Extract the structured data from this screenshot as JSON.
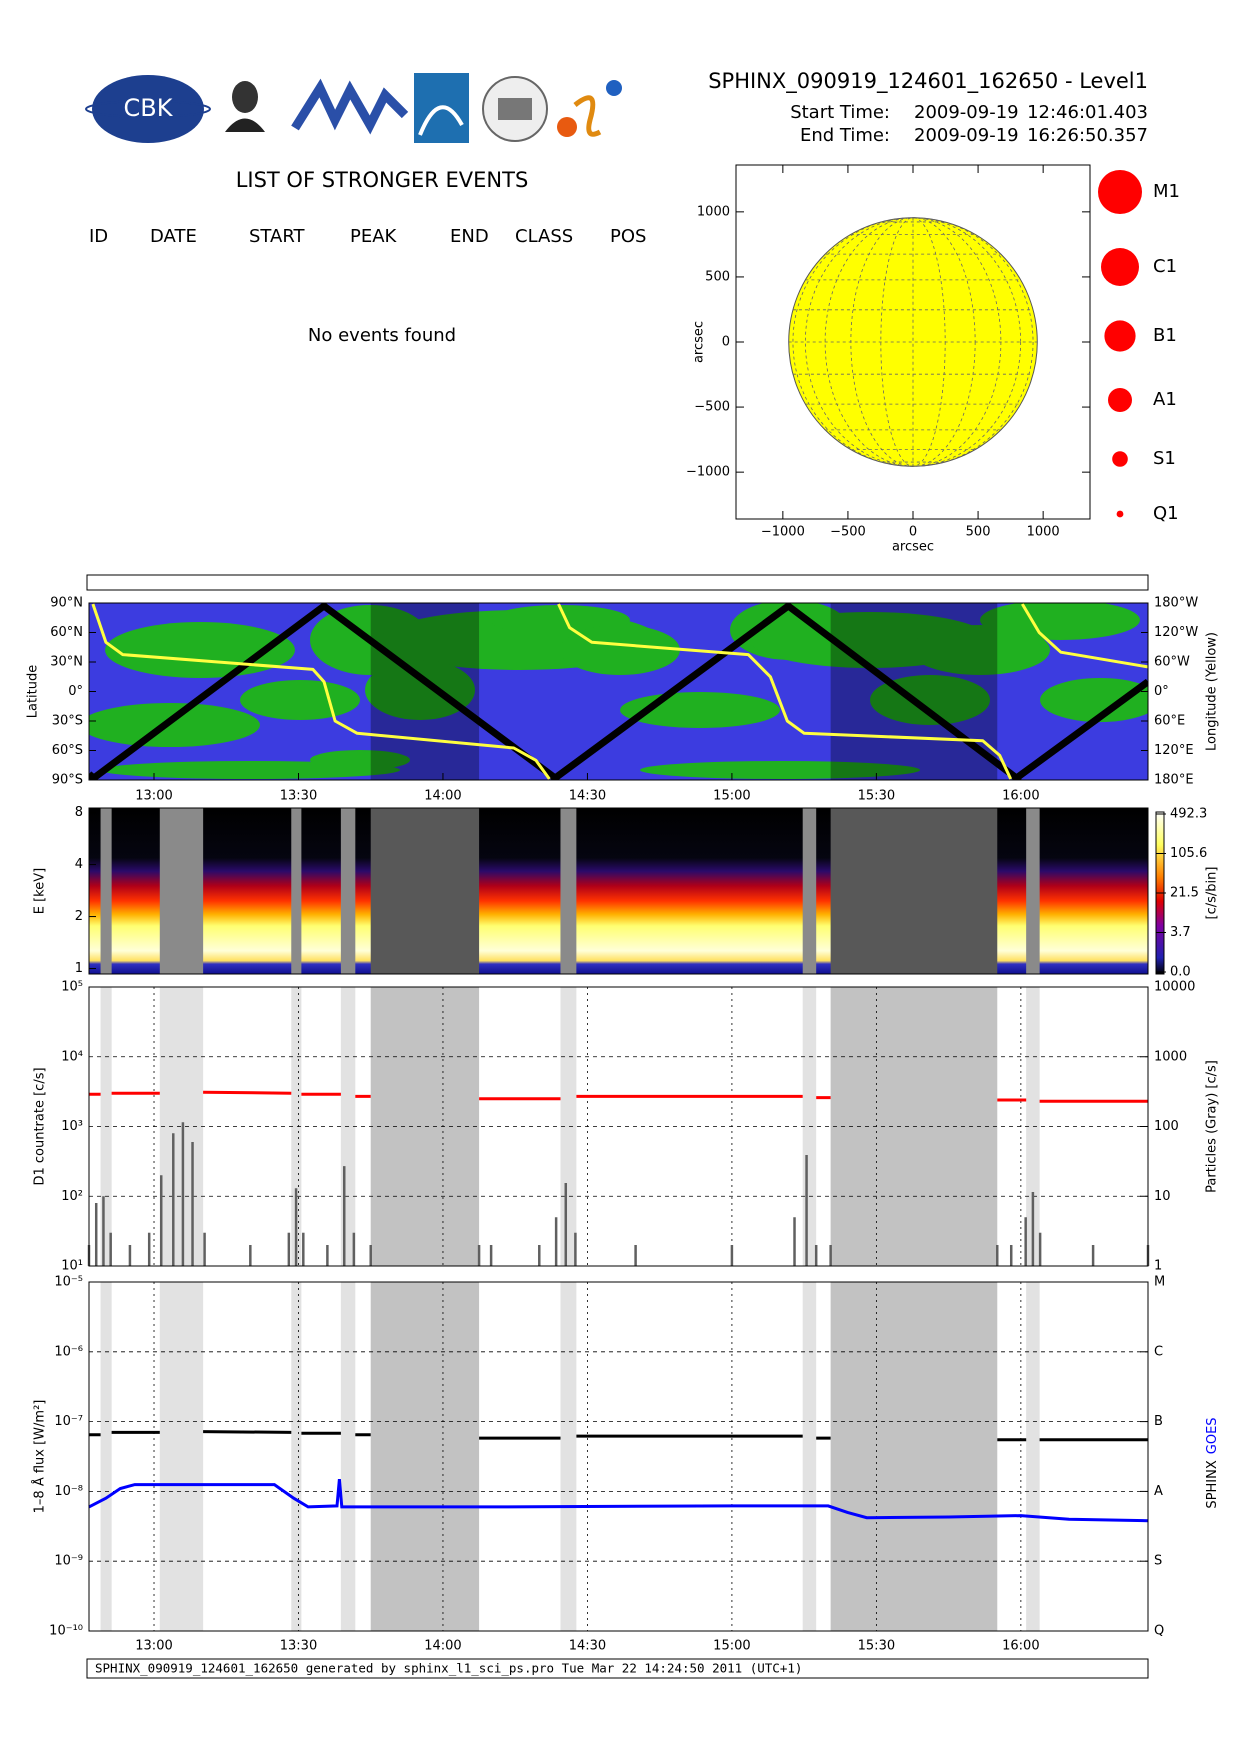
{
  "header": {
    "logo_text": "CBK",
    "title": "SPHINX_090919_124601_162650 - Level1",
    "start_label": "Start Time:",
    "start_date": "2009-09-19",
    "start_time": "12:46:01.403",
    "end_label": "End Time:",
    "end_date": "2009-09-19",
    "end_time": "16:26:50.357"
  },
  "events": {
    "title": "LIST OF STRONGER EVENTS",
    "columns": [
      "ID",
      "DATE",
      "START",
      "PEAK",
      "END",
      "CLASS",
      "POS"
    ],
    "message": "No events found"
  },
  "footer": "SPHINX_090919_124601_162650 generated by sphinx_l1_sci_ps.pro Tue Mar 22 14:24:50 2011 (UTC+1)",
  "chart_data": [
    {
      "type": "disk",
      "xlabel": "arcsec",
      "ylabel": "arcsec",
      "xlim": [
        -1360,
        1360
      ],
      "ylim": [
        -1360,
        1360
      ],
      "xticks": [
        {
          "value": -1000,
          "label": "−1000"
        },
        {
          "value": -500,
          "label": "−500"
        },
        0,
        500,
        1000
      ],
      "yticks": [
        {
          "value": -1000,
          "label": "−1000"
        },
        {
          "value": -500,
          "label": "−500"
        },
        0,
        500,
        1000
      ],
      "disk_radius": 955,
      "disk_color": "#ffff00",
      "classes": [
        "M1",
        "C1",
        "B1",
        "A1",
        "S1",
        "Q1"
      ],
      "class_color": "#ff0000"
    },
    {
      "type": "orbit-map",
      "ylabel": "Latitude",
      "y2label": "Longitude (Yellow)",
      "xlim": [
        766.5,
        986.4
      ],
      "xticks": [
        {
          "value": 780,
          "label": "13:00"
        },
        {
          "value": 810,
          "label": "13:30"
        },
        {
          "value": 840,
          "label": "14:00"
        },
        {
          "value": 870,
          "label": "14:30"
        },
        {
          "value": 900,
          "label": "15:00"
        },
        {
          "value": 930,
          "label": "15:30"
        },
        {
          "value": 960,
          "label": "16:00"
        }
      ],
      "ylim": [
        -90,
        90
      ],
      "yticks": [
        {
          "value": -90,
          "label": "90°S"
        },
        {
          "value": -60,
          "label": "60°S"
        },
        {
          "value": -30,
          "label": "30°S"
        },
        {
          "value": 0,
          "label": "0°"
        },
        {
          "value": 30,
          "label": "30°N"
        },
        {
          "value": 60,
          "label": "60°N"
        },
        {
          "value": 90,
          "label": "90°N"
        }
      ],
      "y2lim": [
        -180,
        180
      ],
      "y2ticks": [
        {
          "value": -180,
          "label": "180°E"
        },
        {
          "value": -120,
          "label": "120°E"
        },
        {
          "value": -60,
          "label": "60°E"
        },
        {
          "value": 0,
          "label": "0°"
        },
        {
          "value": 60,
          "label": "60°W"
        },
        {
          "value": 120,
          "label": "120°W"
        },
        {
          "value": 180,
          "label": "180°W"
        }
      ],
      "series": [
        {
          "color": "#000000",
          "x": [
            766.5,
            767.5,
            815.3,
            863.3,
            911.7,
            959.1,
            986.4
          ],
          "values": [
            -84,
            -88,
            87,
            -88,
            87,
            -88,
            10
          ]
        },
        {
          "color": "#ffff40",
          "axis": "y2",
          "x": [
            767.3,
            770,
            773.5,
            813,
            815.3,
            817.6,
            822.2,
            854.7,
            859.3,
            862.1,
            863,
            864,
            866.3,
            870.9,
            903.4,
            908,
            911.5,
            915,
            952.1,
            955.6,
            957.9,
            959,
            960.3,
            963.8,
            968.3,
            986.4
          ],
          "values": [
            178,
            100,
            75,
            45,
            20,
            -60,
            -85,
            -115,
            -140,
            -178,
            null,
            178,
            130,
            100,
            75,
            30,
            -60,
            -85,
            -100,
            -130,
            -178,
            null,
            178,
            120,
            80,
            50
          ]
        }
      ]
    },
    {
      "type": "spectrogram",
      "ylabel": "E [keV]",
      "xlim": [
        766.5,
        986.4
      ],
      "ylim": [
        0.93,
        8.5
      ],
      "log_y": true,
      "yticks": [
        1,
        2,
        4,
        8
      ],
      "colorbar_label": "[c/s/bin]",
      "colorbar_ticks": [
        {
          "value": 0,
          "label": "0.0"
        },
        3.7,
        21.5,
        105.6,
        492.3
      ]
    },
    {
      "type": "line",
      "ylabel": "D1 countrate [c/s]",
      "y2label": "Particles (Gray) [c/s]",
      "xlim": [
        766.5,
        986.4
      ],
      "ylim": [
        10,
        100000
      ],
      "log_y": true,
      "yticks": [
        {
          "value": 10,
          "label": "10¹"
        },
        {
          "value": 100,
          "label": "10²"
        },
        {
          "value": 1000,
          "label": "10³"
        },
        {
          "value": 10000,
          "label": "10⁴"
        },
        {
          "value": 100000,
          "label": "10⁵"
        }
      ],
      "y2lim": [
        1,
        10000
      ],
      "y2ticks": [
        1,
        10,
        100,
        1000,
        10000
      ],
      "series": [
        {
          "color": "#ff0000",
          "x": [
            766.5,
            768.9,
            770,
            771.2,
            781.2,
            785,
            790.2,
            808.5,
            809.5,
            810.6,
            818.8,
            820,
            821.8,
            825,
            836,
            847.5,
            864.4,
            866,
            867.7,
            914.7,
            916,
            917.5,
            920.5,
            938,
            955.1,
            961.1,
            962.5,
            963.9,
            986.4
          ],
          "values": [
            2900,
            2900,
            null,
            3000,
            3000,
            null,
            3100,
            3000,
            null,
            2900,
            2900,
            null,
            2700,
            2700,
            null,
            2500,
            2500,
            null,
            2700,
            2700,
            null,
            2600,
            2600,
            null,
            2400,
            2400,
            null,
            2300,
            2300
          ]
        },
        {
          "color": "#606060",
          "axis": "y2",
          "x": [
            766.5,
            768,
            769.5,
            771,
            775,
            779,
            781.5,
            784,
            786,
            788,
            790.5,
            800,
            808,
            809.5,
            811,
            816,
            819.5,
            821.5,
            825,
            836,
            847.5,
            850,
            860,
            863.5,
            865.5,
            867.5,
            880,
            900,
            913,
            915.5,
            917.5,
            920.5,
            938,
            955.1,
            958,
            961,
            962.5,
            964,
            975,
            986.4
          ],
          "values": [
            2,
            8,
            10,
            3,
            2,
            3,
            20,
            80,
            115,
            60,
            3,
            2,
            3,
            13,
            3,
            2,
            27,
            3,
            2,
            null,
            2,
            2,
            2,
            5,
            15.5,
            3,
            2,
            2,
            5,
            39,
            2,
            2,
            null,
            2,
            2,
            5,
            11.5,
            3,
            2,
            2
          ]
        }
      ],
      "data_gaps": [
        {
          "x": [
            768.9,
            771.2
          ],
          "kind": "light"
        },
        {
          "x": [
            781.2,
            790.2
          ],
          "kind": "light"
        },
        {
          "x": [
            808.5,
            810.6
          ],
          "kind": "light"
        },
        {
          "x": [
            818.8,
            821.8
          ],
          "kind": "light"
        },
        {
          "x": [
            825,
            847.5
          ],
          "kind": "dark"
        },
        {
          "x": [
            864.4,
            867.7
          ],
          "kind": "light"
        },
        {
          "x": [
            914.7,
            917.5
          ],
          "kind": "light"
        },
        {
          "x": [
            920.5,
            955.1
          ],
          "kind": "dark"
        },
        {
          "x": [
            961.1,
            963.9
          ],
          "kind": "light"
        }
      ]
    },
    {
      "type": "line",
      "ylabel": "1–8 Å flux [W/m²]",
      "xlim": [
        766.5,
        986.4
      ],
      "xticks": [
        {
          "value": 780,
          "label": "13:00"
        },
        {
          "value": 810,
          "label": "13:30"
        },
        {
          "value": 840,
          "label": "14:00"
        },
        {
          "value": 870,
          "label": "14:30"
        },
        {
          "value": 900,
          "label": "15:00"
        },
        {
          "value": 930,
          "label": "15:30"
        },
        {
          "value": 960,
          "label": "16:00"
        }
      ],
      "ylim": [
        1e-10,
        1e-05
      ],
      "log_y": true,
      "yticks": [
        {
          "value": 1e-10,
          "label": "10⁻¹⁰"
        },
        {
          "value": 1e-09,
          "label": "10⁻⁹"
        },
        {
          "value": 1e-08,
          "label": "10⁻⁸"
        },
        {
          "value": 1e-07,
          "label": "10⁻⁷"
        },
        {
          "value": 1e-06,
          "label": "10⁻⁶"
        },
        {
          "value": 1e-05,
          "label": "10⁻⁵"
        }
      ],
      "y2ticks": [
        {
          "value": 1e-10,
          "label": "Q"
        },
        {
          "value": 1e-09,
          "label": "S"
        },
        {
          "value": 1e-08,
          "label": "A"
        },
        {
          "value": 1e-07,
          "label": "B"
        },
        {
          "value": 1e-06,
          "label": "C"
        },
        {
          "value": 1e-05,
          "label": "M"
        }
      ],
      "series": [
        {
          "name": "SPHINX",
          "color": "#000000",
          "x": [
            766.5,
            768.9,
            770,
            771.2,
            781.2,
            785,
            790.2,
            808.5,
            809.5,
            810.6,
            818.8,
            820,
            821.8,
            825,
            836,
            847.5,
            864.4,
            866,
            867.7,
            914.7,
            916,
            917.5,
            920.5,
            938,
            955.1,
            961.1,
            962.5,
            963.9,
            986.4
          ],
          "values": [
            6.5e-08,
            6.5e-08,
            null,
            7e-08,
            7e-08,
            null,
            7.2e-08,
            7e-08,
            null,
            6.8e-08,
            6.8e-08,
            null,
            6.5e-08,
            6.5e-08,
            null,
            5.8e-08,
            5.8e-08,
            null,
            6.2e-08,
            6.2e-08,
            null,
            5.8e-08,
            5.8e-08,
            null,
            5.5e-08,
            5.5e-08,
            null,
            5.5e-08,
            5.5e-08
          ]
        },
        {
          "name": "GOES",
          "color": "#0000ff",
          "x": [
            766.5,
            770,
            773,
            776,
            805,
            809,
            812,
            818,
            818.5,
            819,
            826,
            850,
            900,
            920,
            924,
            928,
            945,
            960,
            970,
            986.4
          ],
          "values": [
            6e-09,
            8e-09,
            1.1e-08,
            1.25e-08,
            1.25e-08,
            8e-09,
            6e-09,
            6.2e-09,
            1.5e-08,
            6e-09,
            6e-09,
            6e-09,
            6.2e-09,
            6.2e-09,
            5e-09,
            4.2e-09,
            4.3e-09,
            4.5e-09,
            4e-09,
            3.8e-09
          ]
        }
      ]
    }
  ]
}
